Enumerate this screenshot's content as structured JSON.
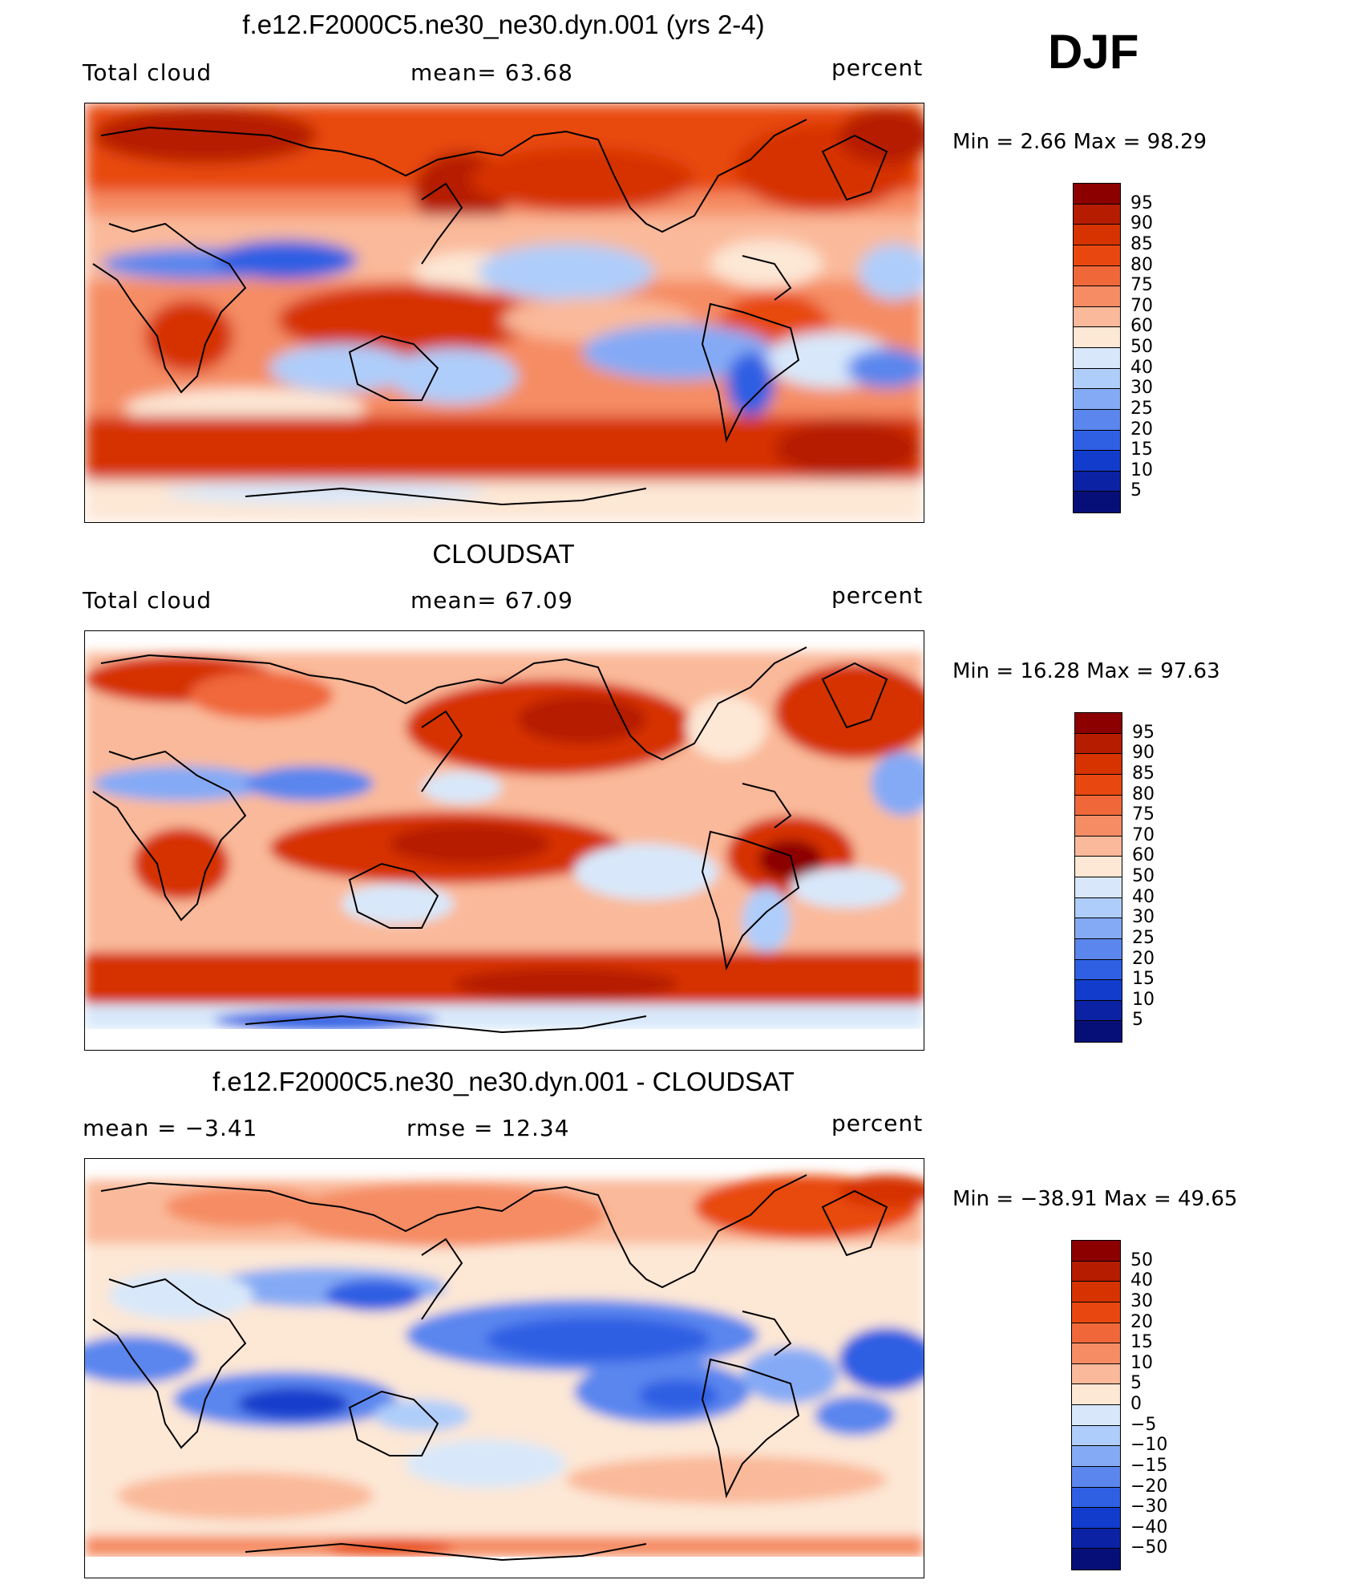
{
  "season": "DJF",
  "panels": [
    {
      "title": "f.e12.F2000C5.ne30_ne30.dyn.001 (yrs 2-4)",
      "left_label": "Total cloud",
      "center_label": "mean=   63.68",
      "right_label": "percent",
      "minmax": "Min =    2.66 Max =   98.29",
      "colorbar": {
        "labels": [
          "95",
          "90",
          "85",
          "80",
          "75",
          "70",
          "60",
          "50",
          "40",
          "30",
          "25",
          "20",
          "15",
          "10",
          "5"
        ],
        "colors": [
          "#8c0000",
          "#b51c00",
          "#d63300",
          "#e8480f",
          "#f0683a",
          "#f58c64",
          "#fab99a",
          "#fde7d5",
          "#d8e8fa",
          "#afcdfa",
          "#85aaf5",
          "#5a86ee",
          "#2f5fe3",
          "#123ccc",
          "#0a22a3",
          "#060f78"
        ]
      }
    },
    {
      "title": "CLOUDSAT",
      "left_label": "Total cloud",
      "center_label": "mean=   67.09",
      "right_label": "percent",
      "minmax": "Min =   16.28 Max =   97.63",
      "colorbar": {
        "labels": [
          "95",
          "90",
          "85",
          "80",
          "75",
          "70",
          "60",
          "50",
          "40",
          "30",
          "25",
          "20",
          "15",
          "10",
          "5"
        ],
        "colors": [
          "#8c0000",
          "#b51c00",
          "#d63300",
          "#e8480f",
          "#f0683a",
          "#f58c64",
          "#fab99a",
          "#fde7d5",
          "#d8e8fa",
          "#afcdfa",
          "#85aaf5",
          "#5a86ee",
          "#2f5fe3",
          "#123ccc",
          "#0a22a3",
          "#060f78"
        ]
      }
    },
    {
      "title": "f.e12.F2000C5.ne30_ne30.dyn.001 - CLOUDSAT",
      "left_label": "mean =   −3.41",
      "center_label": "rmse =   12.34",
      "right_label": "percent",
      "minmax": "Min = −38.91 Max =   49.65",
      "colorbar": {
        "labels": [
          "50",
          "40",
          "30",
          "20",
          "15",
          "10",
          "5",
          "0",
          "−5",
          "−10",
          "−15",
          "−20",
          "−30",
          "−40",
          "−50"
        ],
        "colors": [
          "#8c0000",
          "#b51c00",
          "#d63300",
          "#e8480f",
          "#f0683a",
          "#f58c64",
          "#fab99a",
          "#fde7d5",
          "#d8e8fa",
          "#afcdfa",
          "#85aaf5",
          "#5a86ee",
          "#2f5fe3",
          "#123ccc",
          "#0a22a3",
          "#060f78"
        ]
      }
    }
  ]
}
